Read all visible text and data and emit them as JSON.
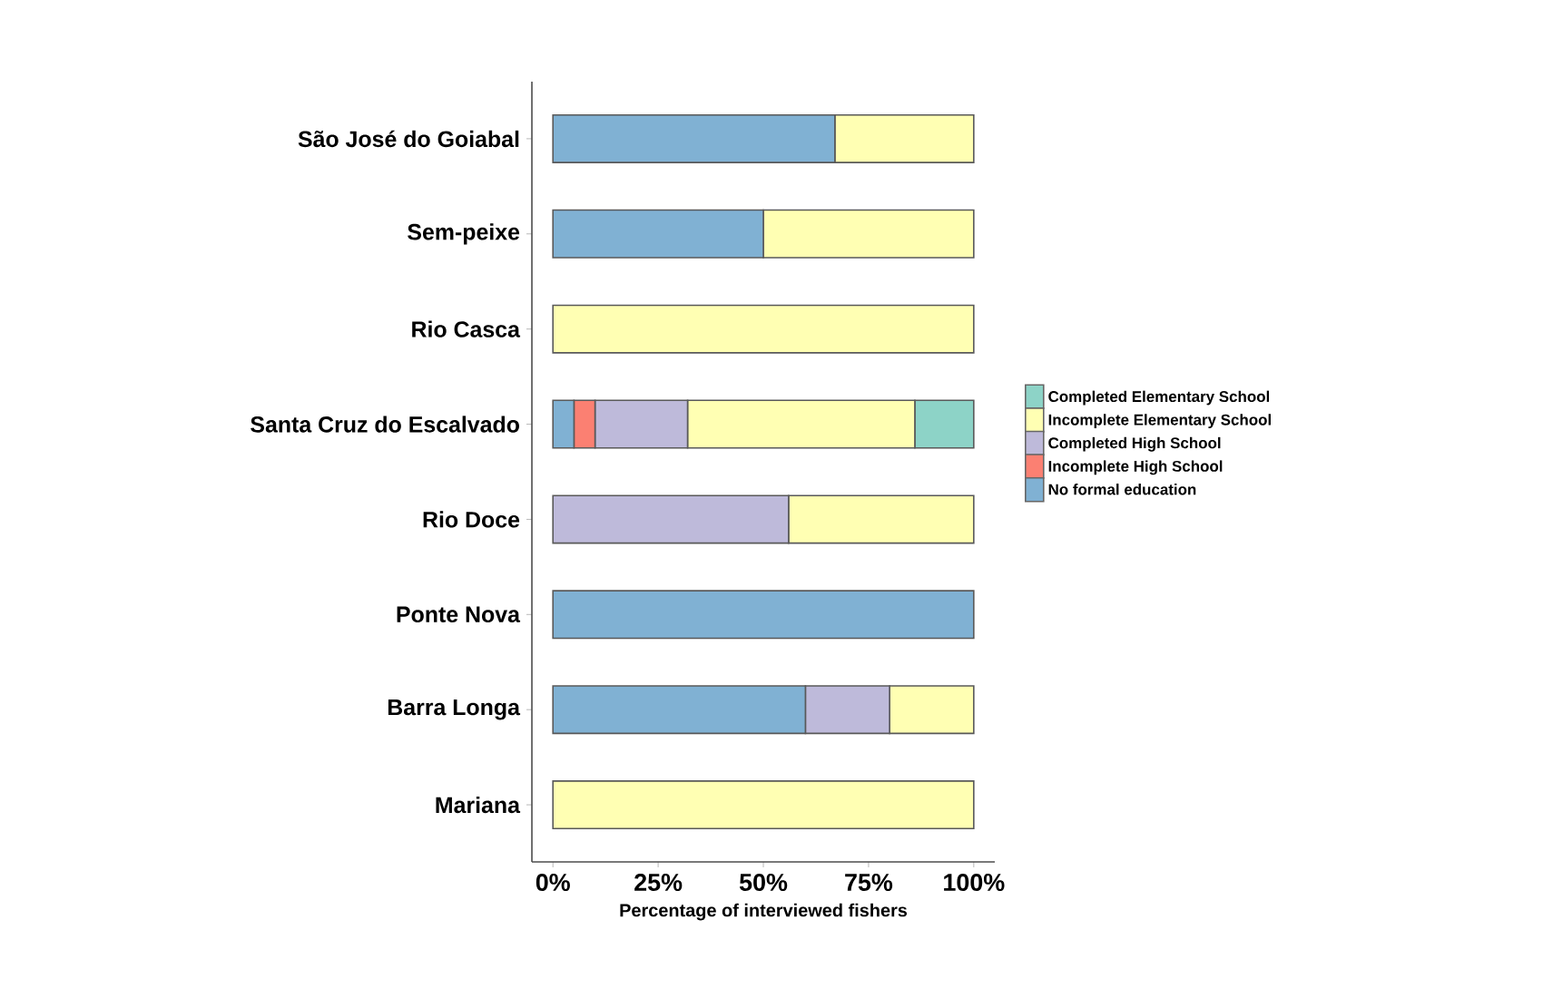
{
  "chart_data": {
    "type": "bar",
    "orientation": "horizontal",
    "stacked": true,
    "legend": "right",
    "xlabel": "Percentage of interviewed fishers",
    "categories": [
      "São José do Goiabal",
      "Sem-peixe",
      "Rio Casca",
      "Santa Cruz do Escalvado",
      "Rio Doce",
      "Ponte Nova",
      "Barra Longa",
      "Mariana"
    ],
    "xlim": [
      -5,
      105
    ],
    "xticks": [
      {
        "value": 0,
        "label": "0%"
      },
      {
        "value": 25,
        "label": "25%"
      },
      {
        "value": 50,
        "label": "50%"
      },
      {
        "value": 75,
        "label": "75%"
      },
      {
        "value": 100,
        "label": "100%"
      }
    ],
    "series": [
      {
        "name": "No formal education",
        "color": "#80b1d3",
        "values": [
          67,
          50,
          0,
          5,
          0,
          100,
          60,
          0
        ]
      },
      {
        "name": "Incomplete High School",
        "color": "#fb8072",
        "values": [
          0,
          0,
          0,
          5,
          0,
          0,
          0,
          0
        ]
      },
      {
        "name": "Completed High School",
        "color": "#bebada",
        "values": [
          0,
          0,
          0,
          22,
          56,
          0,
          20,
          0
        ]
      },
      {
        "name": "Incomplete Elementary School",
        "color": "#ffffb3",
        "values": [
          33,
          50,
          100,
          54,
          44,
          0,
          20,
          100
        ]
      },
      {
        "name": "Completed Elementary School",
        "color": "#8dd3c7",
        "values": [
          0,
          0,
          0,
          14,
          0,
          0,
          0,
          0
        ]
      }
    ]
  }
}
